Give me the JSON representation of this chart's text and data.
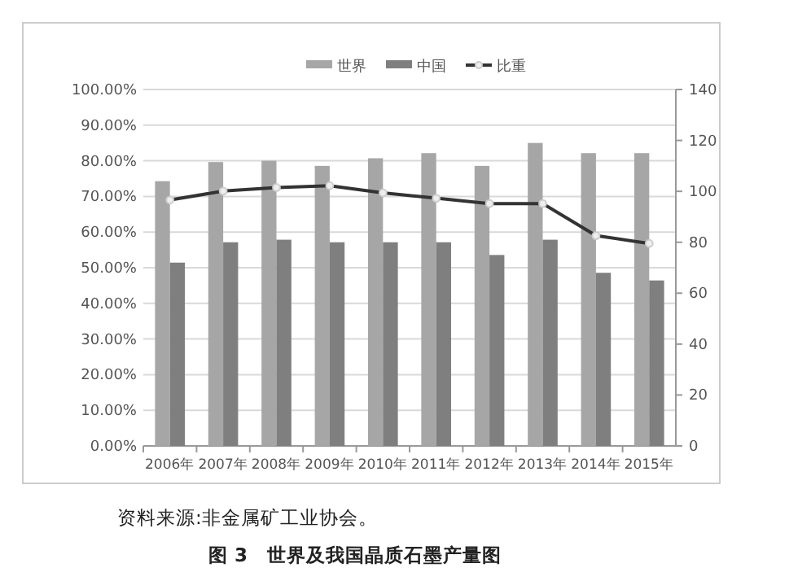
{
  "chart_data": {
    "type": "bar",
    "categories": [
      "2006年",
      "2007年",
      "2008年",
      "2009年",
      "2010年",
      "2011年",
      "2012年",
      "2013年",
      "2014年",
      "2015年"
    ],
    "series": [
      {
        "name": "世界",
        "color": "#a6a6a6",
        "axis": "y2",
        "values": [
          104,
          111.5,
          112,
          110,
          113,
          115,
          110,
          119,
          115,
          115
        ]
      },
      {
        "name": "中国",
        "color": "#7f7f7f",
        "axis": "y2",
        "values": [
          72,
          80,
          81,
          80,
          80,
          80,
          75,
          81,
          68,
          65
        ]
      },
      {
        "name": "比重",
        "type": "line",
        "color": "#333333",
        "marker": "circle",
        "values": [
          69,
          71.5,
          72.5,
          73,
          71,
          69.5,
          68,
          68,
          59,
          56.8
        ]
      }
    ],
    "ylim": [
      0,
      100
    ],
    "yticks": [
      {
        "value": 0,
        "label": "0.00%"
      },
      {
        "value": 10,
        "label": "10.00%"
      },
      {
        "value": 20,
        "label": "20.00%"
      },
      {
        "value": 30,
        "label": "30.00%"
      },
      {
        "value": 40,
        "label": "40.00%"
      },
      {
        "value": 50,
        "label": "50.00%"
      },
      {
        "value": 60,
        "label": "60.00%"
      },
      {
        "value": 70,
        "label": "70.00%"
      },
      {
        "value": 80,
        "label": "80.00%"
      },
      {
        "value": 90,
        "label": "90.00%"
      },
      {
        "value": 100,
        "label": "100.00%"
      }
    ],
    "y2lim": [
      0,
      140
    ],
    "y2ticks": [
      0,
      20,
      40,
      60,
      80,
      100,
      120,
      140
    ],
    "grid": "y",
    "legend": "top",
    "annotations": [
      "资料来源:非金属矿工业协会。",
      "图 3　世界及我国晶质石墨产量图"
    ]
  }
}
